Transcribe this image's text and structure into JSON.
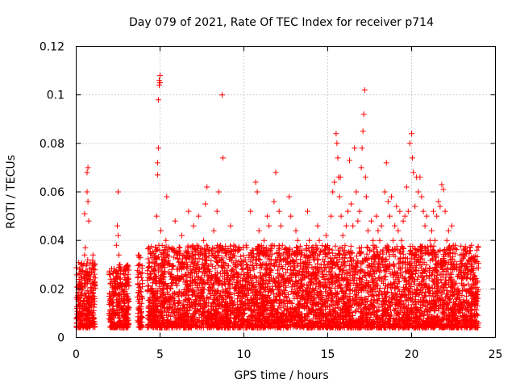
{
  "chart_data": {
    "type": "scatter",
    "title": "Day 079 of 2021, Rate Of TEC Index for receiver p714",
    "xlabel": "GPS time / hours",
    "ylabel": "ROTI / TECUs",
    "xlim": [
      0,
      25
    ],
    "ylim": [
      0,
      0.12
    ],
    "xticks": [
      0,
      5,
      10,
      15,
      20,
      25
    ],
    "xtick_labels": [
      "0",
      "5",
      "10",
      "15",
      "20",
      "25"
    ],
    "yticks": [
      0,
      0.02,
      0.04,
      0.06,
      0.08,
      0.1,
      0.12
    ],
    "ytick_labels": [
      "0",
      "0.02",
      "0.04",
      "0.06",
      "0.08",
      "0.1",
      "0.12"
    ],
    "grid": true,
    "marker": "plus",
    "color": "#ff0000",
    "series": [
      {
        "name": "ROTI",
        "points": [
          [
            0.05,
            0.012
          ],
          [
            0.1,
            0.008
          ],
          [
            0.15,
            0.016
          ],
          [
            0.2,
            0.022
          ],
          [
            0.25,
            0.014
          ],
          [
            0.3,
            0.03
          ],
          [
            0.3,
            0.006
          ],
          [
            0.35,
            0.01
          ],
          [
            0.4,
            0.02
          ],
          [
            0.45,
            0.026
          ],
          [
            0.5,
            0.034
          ],
          [
            0.5,
            0.051
          ],
          [
            0.55,
            0.012
          ],
          [
            0.6,
            0.018
          ],
          [
            0.65,
            0.009
          ],
          [
            0.7,
            0.015
          ],
          [
            0.55,
            0.037
          ],
          [
            0.65,
            0.068
          ],
          [
            0.65,
            0.06
          ],
          [
            0.7,
            0.07
          ],
          [
            0.7,
            0.056
          ],
          [
            0.75,
            0.048
          ],
          [
            0.75,
            0.024
          ],
          [
            0.8,
            0.013
          ],
          [
            0.85,
            0.01
          ],
          [
            0.9,
            0.02
          ],
          [
            0.95,
            0.016
          ],
          [
            1.0,
            0.028
          ],
          [
            1.0,
            0.034
          ],
          [
            1.05,
            0.011
          ],
          [
            1.1,
            0.022
          ],
          [
            2.0,
            0.01
          ],
          [
            2.05,
            0.016
          ],
          [
            2.1,
            0.008
          ],
          [
            2.15,
            0.013
          ],
          [
            2.2,
            0.02
          ],
          [
            2.25,
            0.011
          ],
          [
            2.3,
            0.009
          ],
          [
            2.35,
            0.018
          ],
          [
            2.4,
            0.038
          ],
          [
            2.45,
            0.046
          ],
          [
            2.5,
            0.042
          ],
          [
            2.5,
            0.06
          ],
          [
            2.55,
            0.034
          ],
          [
            2.6,
            0.029
          ],
          [
            2.65,
            0.024
          ],
          [
            2.7,
            0.016
          ],
          [
            2.75,
            0.012
          ],
          [
            2.8,
            0.019
          ],
          [
            2.85,
            0.009
          ],
          [
            2.9,
            0.014
          ],
          [
            2.95,
            0.022
          ],
          [
            3.0,
            0.01
          ],
          [
            3.05,
            0.018
          ],
          [
            3.1,
            0.026
          ],
          [
            3.1,
            0.007
          ],
          [
            3.7,
            0.034
          ],
          [
            3.75,
            0.027
          ],
          [
            3.8,
            0.014
          ],
          [
            3.8,
            0.022
          ],
          [
            3.85,
            0.01
          ],
          [
            3.9,
            0.017
          ],
          [
            4.3,
            0.008
          ],
          [
            4.35,
            0.012
          ],
          [
            4.4,
            0.026
          ],
          [
            4.5,
            0.02
          ],
          [
            4.55,
            0.014
          ],
          [
            4.6,
            0.018
          ],
          [
            4.65,
            0.024
          ],
          [
            4.7,
            0.011
          ],
          [
            4.75,
            0.016
          ],
          [
            4.8,
            0.05
          ],
          [
            4.85,
            0.067
          ],
          [
            4.85,
            0.072
          ],
          [
            4.9,
            0.078
          ],
          [
            4.9,
            0.098
          ],
          [
            4.95,
            0.104
          ],
          [
            4.95,
            0.106
          ],
          [
            5.0,
            0.105
          ],
          [
            5.0,
            0.108
          ],
          [
            5.05,
            0.044
          ],
          [
            5.1,
            0.032
          ],
          [
            5.15,
            0.026
          ],
          [
            5.2,
            0.018
          ],
          [
            5.25,
            0.012
          ],
          [
            5.3,
            0.022
          ],
          [
            5.35,
            0.04
          ],
          [
            5.4,
            0.058
          ],
          [
            5.45,
            0.03
          ],
          [
            5.5,
            0.016
          ],
          [
            5.6,
            0.02
          ],
          [
            5.7,
            0.028
          ],
          [
            5.8,
            0.036
          ],
          [
            5.9,
            0.048
          ],
          [
            6.0,
            0.024
          ],
          [
            6.1,
            0.014
          ],
          [
            6.2,
            0.03
          ],
          [
            6.3,
            0.042
          ],
          [
            6.4,
            0.018
          ],
          [
            6.5,
            0.026
          ],
          [
            6.6,
            0.035
          ],
          [
            6.7,
            0.052
          ],
          [
            6.8,
            0.02
          ],
          [
            6.9,
            0.032
          ],
          [
            7.0,
            0.046
          ],
          [
            7.1,
            0.024
          ],
          [
            7.2,
            0.038
          ],
          [
            7.3,
            0.05
          ],
          [
            7.4,
            0.016
          ],
          [
            7.5,
            0.03
          ],
          [
            7.6,
            0.04
          ],
          [
            7.7,
            0.055
          ],
          [
            7.8,
            0.062
          ],
          [
            7.9,
            0.028
          ],
          [
            8.0,
            0.02
          ],
          [
            8.1,
            0.034
          ],
          [
            8.2,
            0.044
          ],
          [
            8.3,
            0.026
          ],
          [
            8.4,
            0.052
          ],
          [
            8.5,
            0.06
          ],
          [
            8.6,
            0.038
          ],
          [
            8.7,
            0.1
          ],
          [
            8.75,
            0.074
          ],
          [
            8.8,
            0.03
          ],
          [
            8.9,
            0.022
          ],
          [
            9.0,
            0.018
          ],
          [
            9.1,
            0.036
          ],
          [
            9.2,
            0.046
          ],
          [
            9.3,
            0.028
          ],
          [
            9.4,
            0.038
          ],
          [
            9.5,
            0.02
          ],
          [
            9.6,
            0.03
          ],
          [
            9.7,
            0.026
          ],
          [
            9.8,
            0.022
          ],
          [
            9.9,
            0.016
          ],
          [
            10.0,
            0.02
          ],
          [
            10.1,
            0.012
          ],
          [
            10.2,
            0.028
          ],
          [
            10.3,
            0.034
          ],
          [
            10.4,
            0.052
          ],
          [
            10.5,
            0.036
          ],
          [
            10.6,
            0.028
          ],
          [
            10.7,
            0.064
          ],
          [
            10.8,
            0.06
          ],
          [
            10.9,
            0.044
          ],
          [
            11.0,
            0.03
          ],
          [
            11.1,
            0.022
          ],
          [
            11.2,
            0.04
          ],
          [
            11.3,
            0.034
          ],
          [
            11.4,
            0.05
          ],
          [
            11.5,
            0.046
          ],
          [
            11.6,
            0.028
          ],
          [
            11.7,
            0.038
          ],
          [
            11.8,
            0.056
          ],
          [
            11.9,
            0.068
          ],
          [
            12.0,
            0.032
          ],
          [
            12.1,
            0.052
          ],
          [
            12.2,
            0.046
          ],
          [
            12.3,
            0.038
          ],
          [
            12.4,
            0.024
          ],
          [
            12.5,
            0.03
          ],
          [
            12.6,
            0.036
          ],
          [
            12.7,
            0.058
          ],
          [
            12.8,
            0.05
          ],
          [
            12.9,
            0.032
          ],
          [
            13.0,
            0.026
          ],
          [
            13.1,
            0.044
          ],
          [
            13.2,
            0.04
          ],
          [
            13.3,
            0.036
          ],
          [
            13.4,
            0.022
          ],
          [
            13.5,
            0.028
          ],
          [
            13.6,
            0.034
          ],
          [
            13.7,
            0.03
          ],
          [
            13.8,
            0.052
          ],
          [
            13.9,
            0.04
          ],
          [
            14.0,
            0.024
          ],
          [
            14.1,
            0.02
          ],
          [
            14.2,
            0.032
          ],
          [
            14.3,
            0.038
          ],
          [
            14.4,
            0.046
          ],
          [
            14.5,
            0.04
          ],
          [
            14.6,
            0.03
          ],
          [
            14.7,
            0.026
          ],
          [
            14.8,
            0.036
          ],
          [
            14.9,
            0.042
          ],
          [
            15.0,
            0.03
          ],
          [
            15.1,
            0.022
          ],
          [
            15.2,
            0.05
          ],
          [
            15.3,
            0.06
          ],
          [
            15.4,
            0.064
          ],
          [
            15.5,
            0.084
          ],
          [
            15.55,
            0.08
          ],
          [
            15.6,
            0.074
          ],
          [
            15.65,
            0.066
          ],
          [
            15.7,
            0.058
          ],
          [
            15.75,
            0.066
          ],
          [
            15.8,
            0.05
          ],
          [
            15.9,
            0.042
          ],
          [
            16.0,
            0.036
          ],
          [
            16.1,
            0.046
          ],
          [
            16.2,
            0.052
          ],
          [
            16.3,
            0.073
          ],
          [
            16.4,
            0.055
          ],
          [
            16.5,
            0.046
          ],
          [
            16.6,
            0.078
          ],
          [
            16.7,
            0.06
          ],
          [
            16.8,
            0.048
          ],
          [
            16.9,
            0.052
          ],
          [
            17.0,
            0.07
          ],
          [
            17.05,
            0.078
          ],
          [
            17.1,
            0.085
          ],
          [
            17.15,
            0.092
          ],
          [
            17.2,
            0.102
          ],
          [
            17.25,
            0.066
          ],
          [
            17.3,
            0.058
          ],
          [
            17.4,
            0.044
          ],
          [
            17.5,
            0.036
          ],
          [
            17.6,
            0.048
          ],
          [
            17.7,
            0.04
          ],
          [
            17.8,
            0.032
          ],
          [
            17.9,
            0.05
          ],
          [
            18.0,
            0.044
          ],
          [
            18.1,
            0.04
          ],
          [
            18.2,
            0.046
          ],
          [
            18.3,
            0.036
          ],
          [
            18.4,
            0.06
          ],
          [
            18.5,
            0.072
          ],
          [
            18.6,
            0.056
          ],
          [
            18.7,
            0.05
          ],
          [
            18.8,
            0.058
          ],
          [
            18.9,
            0.04
          ],
          [
            19.0,
            0.046
          ],
          [
            19.1,
            0.054
          ],
          [
            19.2,
            0.044
          ],
          [
            19.3,
            0.052
          ],
          [
            19.4,
            0.04
          ],
          [
            19.5,
            0.048
          ],
          [
            19.6,
            0.05
          ],
          [
            19.7,
            0.062
          ],
          [
            19.8,
            0.052
          ],
          [
            19.9,
            0.08
          ],
          [
            20.0,
            0.084
          ],
          [
            20.05,
            0.074
          ],
          [
            20.1,
            0.068
          ],
          [
            20.2,
            0.054
          ],
          [
            20.3,
            0.066
          ],
          [
            20.4,
            0.06
          ],
          [
            20.5,
            0.066
          ],
          [
            20.6,
            0.058
          ],
          [
            20.7,
            0.052
          ],
          [
            20.8,
            0.046
          ],
          [
            20.9,
            0.05
          ],
          [
            21.0,
            0.036
          ],
          [
            21.1,
            0.04
          ],
          [
            21.2,
            0.044
          ],
          [
            21.3,
            0.052
          ],
          [
            21.4,
            0.04
          ],
          [
            21.5,
            0.05
          ],
          [
            21.6,
            0.056
          ],
          [
            21.7,
            0.054
          ],
          [
            21.8,
            0.063
          ],
          [
            21.9,
            0.061
          ],
          [
            22.0,
            0.052
          ],
          [
            22.1,
            0.04
          ],
          [
            22.2,
            0.044
          ],
          [
            22.3,
            0.036
          ],
          [
            22.4,
            0.046
          ],
          [
            22.5,
            0.03
          ],
          [
            22.6,
            0.038
          ],
          [
            22.7,
            0.03
          ],
          [
            22.8,
            0.026
          ],
          [
            22.9,
            0.034
          ],
          [
            23.0,
            0.032
          ],
          [
            23.1,
            0.036
          ],
          [
            23.2,
            0.03
          ],
          [
            23.3,
            0.026
          ],
          [
            23.4,
            0.032
          ],
          [
            23.5,
            0.02
          ],
          [
            23.6,
            0.024
          ],
          [
            23.7,
            0.022
          ],
          [
            23.8,
            0.018
          ],
          [
            23.9,
            0.016
          ],
          [
            5.1,
            0.004
          ],
          [
            5.6,
            0.006
          ],
          [
            6.2,
            0.008
          ],
          [
            6.9,
            0.005
          ],
          [
            7.5,
            0.007
          ],
          [
            8.3,
            0.006
          ],
          [
            9.4,
            0.004
          ],
          [
            10.4,
            0.006
          ],
          [
            11.3,
            0.007
          ],
          [
            12.4,
            0.005
          ],
          [
            13.2,
            0.006
          ],
          [
            14.0,
            0.004
          ],
          [
            15.2,
            0.007
          ],
          [
            16.4,
            0.005
          ],
          [
            17.6,
            0.006
          ],
          [
            18.7,
            0.004
          ],
          [
            19.6,
            0.007
          ],
          [
            20.8,
            0.006
          ],
          [
            21.8,
            0.005
          ],
          [
            23.0,
            0.007
          ]
        ]
      }
    ]
  }
}
